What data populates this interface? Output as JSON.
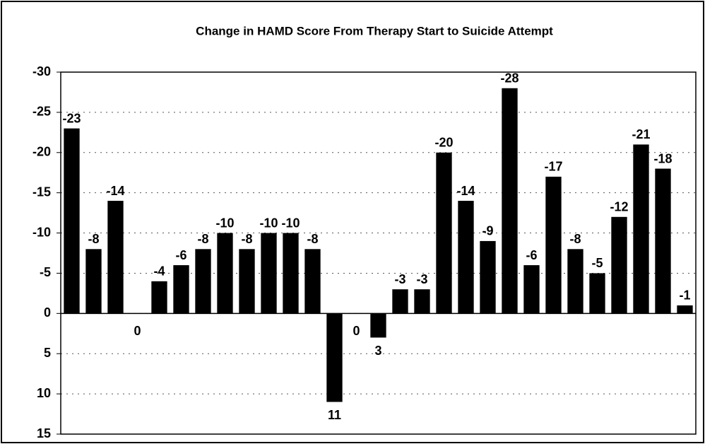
{
  "chart_data": {
    "type": "bar",
    "title": "Change in HAMD Score From Therapy Start to Suicide Attempt",
    "categories": [
      null,
      null,
      null,
      null,
      null,
      null,
      null,
      null,
      null,
      null,
      null,
      null,
      null,
      null,
      null,
      null,
      null,
      null,
      null,
      null,
      null,
      null,
      null,
      null,
      null,
      null,
      null,
      null,
      null
    ],
    "values": [
      -23,
      -8,
      -14,
      0,
      -4,
      -6,
      -8,
      -10,
      -8,
      -10,
      -10,
      -8,
      11,
      0,
      3,
      -3,
      -3,
      -20,
      -14,
      -9,
      -28,
      -6,
      -17,
      -8,
      -5,
      -12,
      -21,
      -18,
      -1
    ],
    "color": "#000000",
    "ylim": [
      -30,
      15
    ],
    "yticks": [
      -30,
      -25,
      -20,
      -15,
      -10,
      -5,
      0,
      5,
      10,
      15
    ],
    "yinverted": true,
    "grid": true
  }
}
